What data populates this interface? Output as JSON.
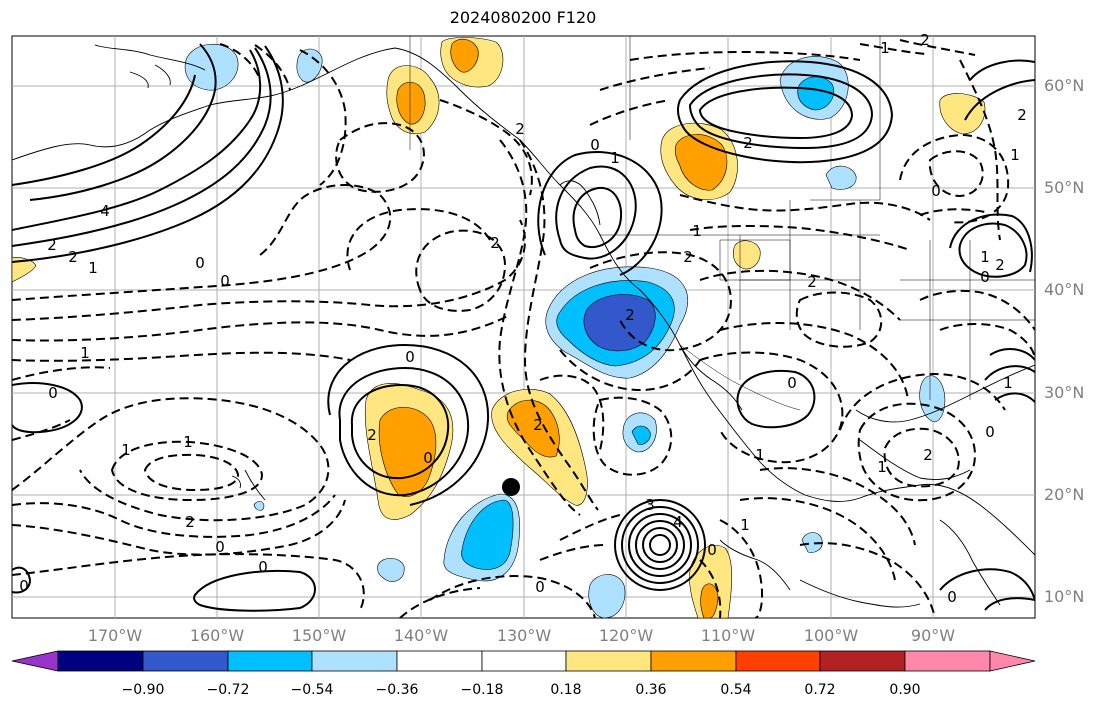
{
  "title": "2024080200 F120",
  "lat_labels": [
    "60°N",
    "50°N",
    "40°N",
    "30°N",
    "20°N",
    "10°N"
  ],
  "lon_labels": [
    "170°W",
    "160°W",
    "150°W",
    "140°W",
    "130°W",
    "120°W",
    "110°W",
    "100°W",
    "90°W"
  ],
  "colorbar": {
    "tick_labels": [
      "−0.90",
      "−0.72",
      "−0.54",
      "−0.36",
      "−0.18",
      "0.18",
      "0.36",
      "0.54",
      "0.72",
      "0.90"
    ],
    "colors": [
      "#9933cc",
      "#000080",
      "#3358cc",
      "#00bfff",
      "#aee0ff",
      "#ffffff",
      "#ffe680",
      "#ffa000",
      "#ff4000",
      "#b22222",
      "#ff88aa"
    ]
  },
  "contour_labels": [
    "1",
    "2",
    "4",
    "2",
    "2",
    "1",
    "0",
    "0",
    "1",
    "2",
    "0",
    "2",
    "1",
    "2",
    "0",
    "1",
    "2",
    "2",
    "0",
    "1",
    "0",
    "2",
    "0",
    "0",
    "1",
    "1",
    "2",
    "0",
    "0",
    "2",
    "0",
    "3",
    "4",
    "0",
    "1",
    "0",
    "2",
    "1",
    "0",
    "1",
    "0",
    "1",
    "2",
    "0",
    "2",
    "1",
    "2"
  ],
  "map_colors": {
    "shade_light_blue": "#aee0ff",
    "shade_blue": "#00bfff",
    "shade_dark_blue": "#3358cc",
    "shade_light_yellow": "#ffe680",
    "shade_orange": "#ffa000",
    "contour_line": "#000000",
    "grid_line": "#b0b0b0"
  }
}
